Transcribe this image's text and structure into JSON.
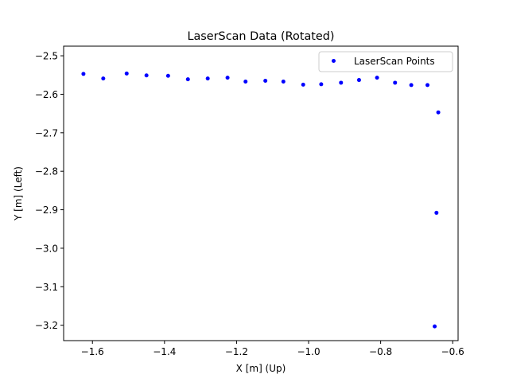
{
  "chart_data": {
    "type": "scatter",
    "title": "LaserScan Data (Rotated)",
    "xlabel": "X [m] (Up)",
    "ylabel": "Y [m] (Left)",
    "xlim": [
      -1.68,
      -0.585
    ],
    "ylim": [
      -3.24,
      -2.475
    ],
    "xticks": [
      -1.6,
      -1.4,
      -1.2,
      -1.0,
      -0.8,
      -0.6
    ],
    "xtick_labels": [
      "−1.6",
      "−1.4",
      "−1.2",
      "−1.0",
      "−0.8",
      "−0.6"
    ],
    "yticks": [
      -2.5,
      -2.6,
      -2.7,
      -2.8,
      -2.9,
      -3.0,
      -3.1,
      -3.2
    ],
    "ytick_labels": [
      "−2.5",
      "−2.6",
      "−2.7",
      "−2.8",
      "−2.9",
      "−3.0",
      "−3.1",
      "−3.2"
    ],
    "grid": false,
    "legend_position": "top-right",
    "series": [
      {
        "name": "LaserScan Points",
        "color": "#0000ff",
        "marker": "circle",
        "x": [
          -1.625,
          -1.57,
          -1.505,
          -1.45,
          -1.39,
          -1.335,
          -1.28,
          -1.225,
          -1.175,
          -1.12,
          -1.07,
          -1.015,
          -0.965,
          -0.91,
          -0.86,
          -0.81,
          -0.76,
          -0.715,
          -0.67,
          -0.64,
          -0.645,
          -0.65
        ],
        "y": [
          -2.547,
          -2.559,
          -2.546,
          -2.551,
          -2.552,
          -2.561,
          -2.559,
          -2.557,
          -2.567,
          -2.565,
          -2.567,
          -2.575,
          -2.574,
          -2.57,
          -2.563,
          -2.557,
          -2.57,
          -2.576,
          -2.576,
          -2.647,
          -2.908,
          -3.203
        ]
      }
    ]
  }
}
